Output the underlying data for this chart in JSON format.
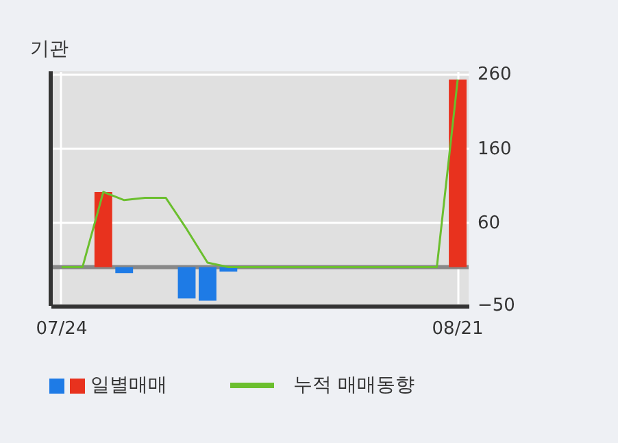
{
  "chart_data": {
    "type": "bar",
    "title": "기관",
    "categories": [
      "07/24",
      null,
      null,
      null,
      null,
      null,
      null,
      null,
      null,
      null,
      null,
      null,
      null,
      null,
      null,
      null,
      null,
      null,
      null,
      "08/21"
    ],
    "series": [
      {
        "name": "일별매매",
        "colors": [
          null,
          null,
          "#e8321e",
          "#1e7be6",
          null,
          null,
          "#1e7be6",
          "#1e7be6",
          "#1e7be6",
          null,
          null,
          null,
          null,
          null,
          null,
          null,
          null,
          null,
          null,
          "#e8321e"
        ],
        "values": [
          null,
          null,
          101,
          -8,
          null,
          null,
          -42,
          -45,
          -6,
          null,
          null,
          null,
          null,
          null,
          null,
          null,
          null,
          null,
          null,
          252
        ]
      },
      {
        "name": "누적 매매동향",
        "type": "line",
        "color": "#6bbf2e",
        "values": [
          0,
          0,
          101,
          90,
          93,
          93,
          51,
          6,
          0,
          0,
          0,
          0,
          0,
          0,
          0,
          0,
          0,
          0,
          0,
          252
        ]
      }
    ],
    "ylim": [
      -52,
      263
    ],
    "yticks": [
      260,
      160,
      60,
      -50
    ],
    "grid": true,
    "legend": "bottom left",
    "ref_lines": [
      {
        "axis": "y",
        "value": 0,
        "color": "#888888"
      }
    ]
  }
}
